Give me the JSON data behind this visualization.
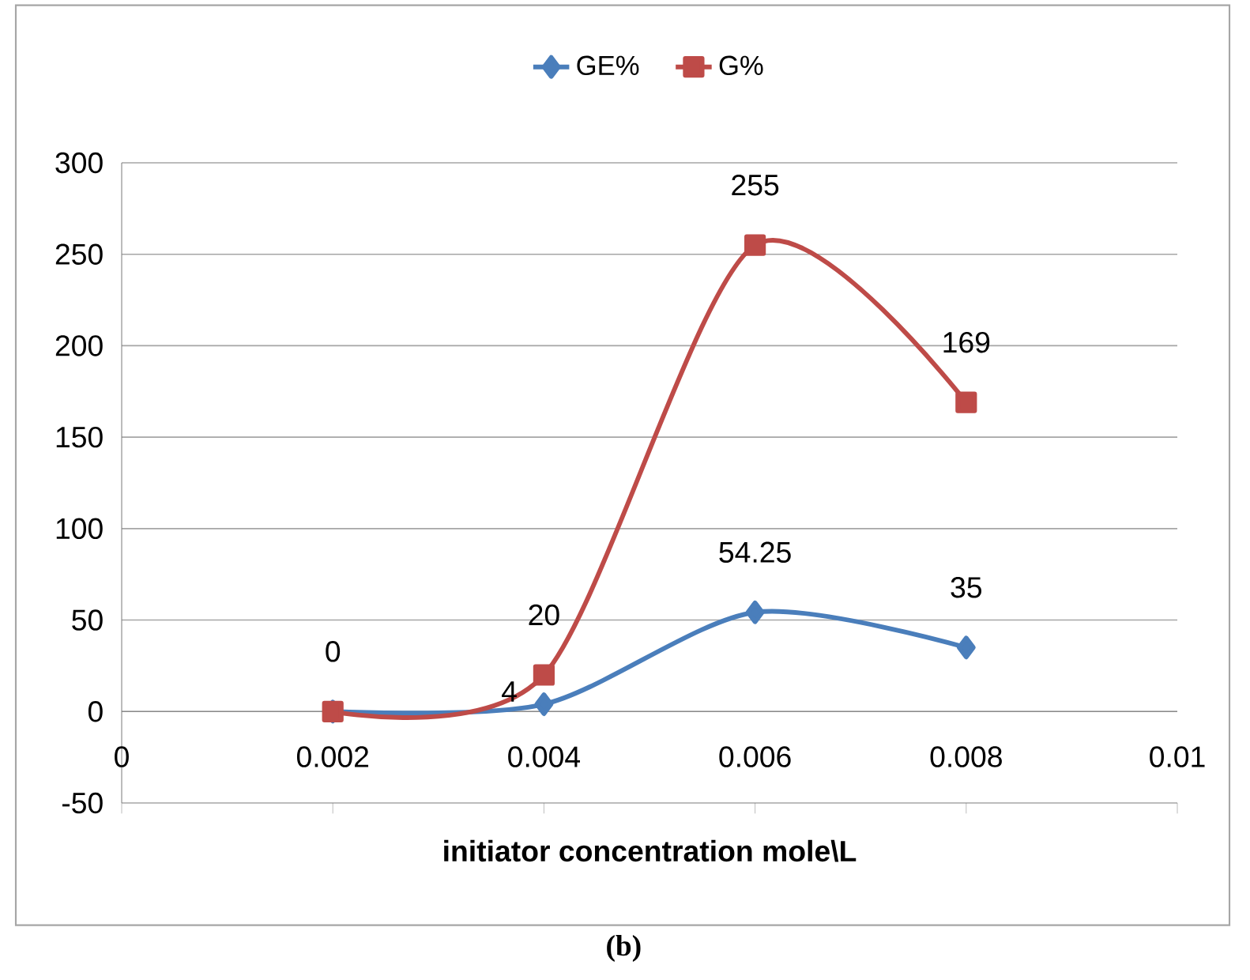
{
  "chart_data": {
    "type": "line",
    "xlabel": "initiator concentration mole\\L",
    "annotations": [
      "(b)"
    ],
    "x": [
      0.002,
      0.004,
      0.006,
      0.008
    ],
    "series": [
      {
        "name": "GE%",
        "color": "#4a7ebb",
        "marker": "diamond",
        "values": [
          0,
          4,
          54.25,
          35
        ],
        "value_labels": [
          null,
          "4",
          "54.25",
          "35"
        ]
      },
      {
        "name": "G%",
        "color": "#be4b48",
        "marker": "square",
        "values": [
          0,
          20,
          255,
          169
        ],
        "value_labels": [
          "0",
          "20",
          "255",
          "169"
        ]
      }
    ],
    "xlim": [
      0,
      0.01
    ],
    "xticks": [
      0,
      0.002,
      0.004,
      0.006,
      0.008,
      0.01
    ],
    "ylim": [
      -50,
      300
    ],
    "yticks": [
      -50,
      0,
      50,
      100,
      150,
      200,
      250,
      300
    ],
    "grid": "y",
    "legend": "top",
    "line_style": "solid"
  }
}
